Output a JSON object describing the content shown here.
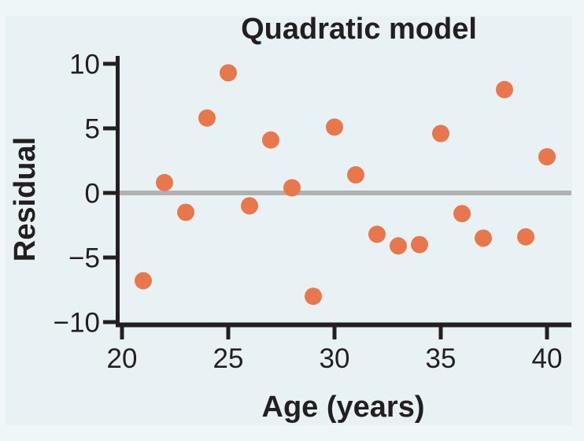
{
  "colors": {
    "page_background": "#eef6f8",
    "panel_background": "#e8f2f5",
    "axis": "#231f20",
    "text": "#231f20",
    "zero_line": "#b1b1b1",
    "point": "#e8784c"
  },
  "chart_data": {
    "type": "scatter",
    "title": "Quadratic model",
    "xlabel": "Age (years)",
    "ylabel": "Residual",
    "grid": false,
    "legend_position": "none",
    "xlim": [
      19.7,
      41.1
    ],
    "ylim": [
      -10.4,
      10.6
    ],
    "zero_reference_line": 0,
    "xticks": {
      "values": [
        20,
        25,
        30,
        35,
        40
      ],
      "labels": [
        "20",
        "25",
        "30",
        "35",
        "40"
      ]
    },
    "yticks": {
      "values": [
        10,
        5,
        0,
        -5,
        -10
      ],
      "labels": [
        "10",
        "5",
        "0",
        "−5",
        "−10"
      ]
    },
    "points": [
      [
        21,
        -6.8
      ],
      [
        22,
        0.8
      ],
      [
        23,
        -1.5
      ],
      [
        24,
        5.8
      ],
      [
        25,
        9.3
      ],
      [
        26,
        -1.0
      ],
      [
        27,
        4.1
      ],
      [
        28,
        0.4
      ],
      [
        29,
        -8.0
      ],
      [
        30,
        5.1
      ],
      [
        31,
        1.4
      ],
      [
        32,
        -3.2
      ],
      [
        33,
        -4.1
      ],
      [
        34,
        -4.0
      ],
      [
        35,
        4.6
      ],
      [
        36,
        -1.6
      ],
      [
        37,
        -3.5
      ],
      [
        38,
        8.0
      ],
      [
        39,
        -3.4
      ],
      [
        40,
        2.8
      ]
    ]
  }
}
